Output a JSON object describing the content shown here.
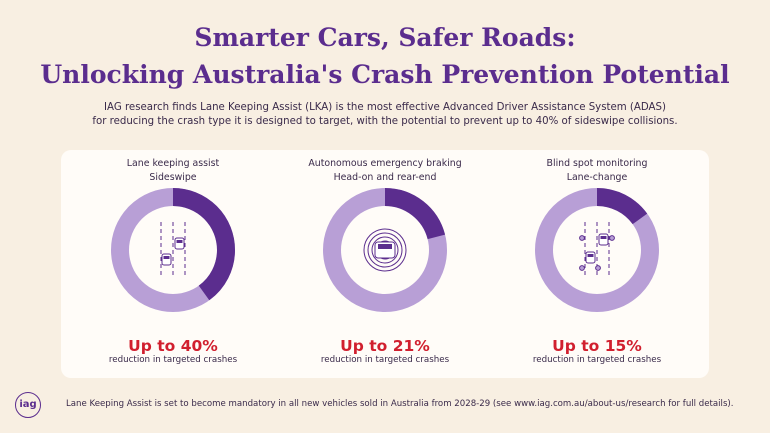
{
  "title_line1": "Smarter Cars, Safer Roads:",
  "title_line2": "Unlocking Australia's Crash Prevention Potential",
  "intro_line1": "IAG research finds Lane Keeping Assist (LKA) is the most effective Advanced Driver Assistance System (ADAS)",
  "intro_line2": "for reducing the crash type it is designed to target, with the potential to prevent up to 40% of sideswipe collisions.",
  "colors": {
    "primary": "#5b2d8e",
    "secondary": "#b89fd6",
    "highlight": "#d11f2e",
    "background": "#f8efe2"
  },
  "chart_data": [
    {
      "type": "pie",
      "system": "Lane keeping assist",
      "crash_type": "Sideswipe",
      "value": 40,
      "display": "Up to 40%",
      "caption": "reduction in targeted crashes",
      "icon": "lane-change-cars-icon"
    },
    {
      "type": "pie",
      "system": "Autonomous emergency braking",
      "crash_type": "Head-on and rear-end",
      "value": 21,
      "display": "Up to 21%",
      "caption": "reduction in targeted crashes",
      "icon": "car-sensor-waves-icon"
    },
    {
      "type": "pie",
      "system": "Blind spot monitoring",
      "crash_type": "Lane-change",
      "value": 15,
      "display": "Up to 15%",
      "caption": "reduction in targeted crashes",
      "icon": "blind-spot-sensors-icon"
    }
  ],
  "logo_text": "iag",
  "footer": "Lane Keeping Assist is set to become mandatory in all new vehicles sold in Australia from 2028-29 (see www.iag.com.au/about-us/research for full details)."
}
